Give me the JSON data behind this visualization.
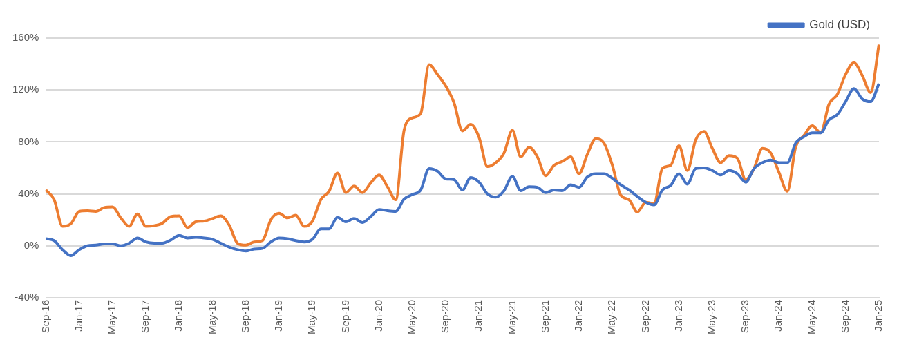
{
  "chart_data": {
    "type": "line",
    "categories": [
      "Sep-16",
      null,
      null,
      null,
      "Jan-17",
      null,
      null,
      null,
      "May-17",
      null,
      null,
      null,
      "Sep-17",
      null,
      null,
      null,
      "Jan-18",
      null,
      null,
      null,
      "May-18",
      null,
      null,
      null,
      "Sep-18",
      null,
      null,
      null,
      "Jan-19",
      null,
      null,
      null,
      "May-19",
      null,
      null,
      null,
      "Sep-19",
      null,
      null,
      null,
      "Jan-20",
      null,
      null,
      null,
      "May-20",
      null,
      null,
      null,
      "Sep-20",
      null,
      null,
      null,
      "Jan-21",
      null,
      null,
      null,
      "May-21",
      null,
      null,
      null,
      "Sep-21",
      null,
      null,
      null,
      "Jan-22",
      null,
      null,
      null,
      "May-22",
      null,
      null,
      null,
      "Sep-22",
      null,
      null,
      null,
      "Jan-23",
      null,
      null,
      null,
      "May-23",
      null,
      null,
      null,
      "Sep-23",
      null,
      null,
      null,
      "Jan-24",
      null,
      null,
      null,
      "May-24",
      null,
      null,
      null,
      "Sep-24",
      null,
      null,
      null,
      "Jan-25"
    ],
    "series": [
      {
        "name": "Gold (USD)",
        "color": "#4472c4",
        "values": [
          5.5,
          4,
          -3,
          -7.5,
          -3,
          0,
          0.5,
          1.5,
          1.5,
          0,
          2,
          6,
          3,
          2,
          2,
          4.5,
          8,
          6,
          6.5,
          6,
          5,
          2,
          -1,
          -3,
          -4,
          -2.5,
          -2,
          3,
          6,
          5.5,
          4,
          3,
          5,
          13,
          13,
          22,
          18.5,
          21,
          18,
          22.5,
          28,
          27,
          26.5,
          36,
          39.5,
          43,
          59.5,
          57.5,
          51.5,
          51,
          43,
          52.5,
          49,
          40,
          37.5,
          42.5,
          53.5,
          42.5,
          45.5,
          45,
          41,
          43,
          42.5,
          47,
          45,
          53,
          55.5,
          55.5,
          52,
          47,
          43,
          38,
          33.5,
          31.5,
          43,
          46.5,
          55.5,
          47.5,
          59.5,
          60,
          58,
          54.5,
          58,
          55.5,
          49,
          59.5,
          64,
          66,
          64,
          64,
          79,
          84,
          87,
          87,
          97,
          101,
          111,
          121,
          113,
          111,
          125
        ]
      },
      {
        "color": "#ed7d31",
        "values": [
          43,
          35.5,
          15,
          17,
          26.5,
          27,
          26.5,
          29.5,
          30,
          21.5,
          15,
          24.5,
          15,
          15.5,
          17.5,
          22.5,
          23,
          14,
          18.5,
          19,
          21,
          23,
          16,
          2,
          0.5,
          3,
          4,
          20,
          25,
          21.5,
          23.5,
          15,
          19,
          35.5,
          42,
          56,
          41,
          46,
          41,
          48.5,
          54.5,
          45.5,
          35.5,
          89,
          98.5,
          102,
          139.5,
          132,
          123,
          110,
          88.5,
          93.5,
          83.5,
          61,
          64,
          71.5,
          89,
          68.5,
          76,
          68.5,
          54,
          62,
          65,
          68.5,
          55.5,
          70.5,
          82.5,
          79,
          62,
          39,
          35.5,
          26,
          33.5,
          32.5,
          59.5,
          62,
          77,
          58,
          81.5,
          88,
          75,
          64,
          69.5,
          67.5,
          51,
          59.5,
          75,
          71.5,
          56.5,
          42,
          76,
          85,
          92.5,
          87,
          109,
          116.5,
          132,
          141,
          131,
          118,
          155
        ]
      }
    ],
    "ylim": [
      -40,
      160
    ],
    "yticks": [
      {
        "value": -40,
        "label": "-40%"
      },
      {
        "value": 0,
        "label": "0%"
      },
      {
        "value": 40,
        "label": "40%"
      },
      {
        "value": 80,
        "label": "80%"
      },
      {
        "value": 120,
        "label": "120%"
      },
      {
        "value": 160,
        "label": "160%"
      }
    ],
    "grid": "y",
    "legend": "top right"
  }
}
